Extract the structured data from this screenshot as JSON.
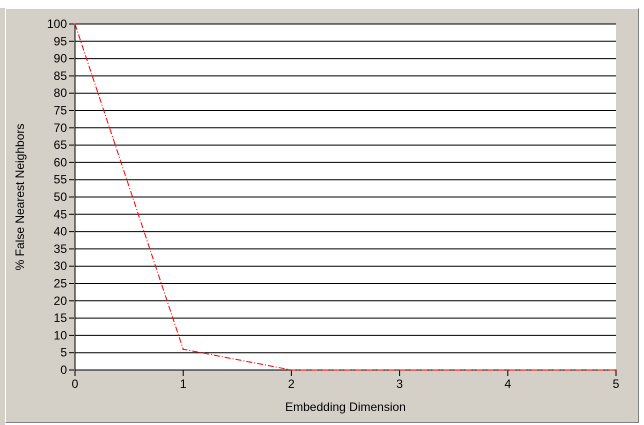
{
  "chart_data": {
    "type": "line",
    "xlabel": "Embedding Dimension",
    "ylabel": "% False Nearest Neighbors",
    "xlim": [
      0,
      5
    ],
    "ylim": [
      0,
      100
    ],
    "x_ticks": [
      "0",
      "1",
      "2",
      "3",
      "4",
      "5"
    ],
    "y_ticks": [
      "0",
      "5",
      "10",
      "15",
      "20",
      "25",
      "30",
      "35",
      "40",
      "45",
      "50",
      "55",
      "60",
      "65",
      "70",
      "75",
      "80",
      "85",
      "90",
      "95",
      "100"
    ],
    "grid": true,
    "series": [
      {
        "x": [
          0,
          1,
          2,
          3,
          4,
          5
        ],
        "y": [
          100,
          6,
          0,
          0,
          0,
          0
        ],
        "color": "#ff0000",
        "style": "dash-dot"
      }
    ]
  }
}
